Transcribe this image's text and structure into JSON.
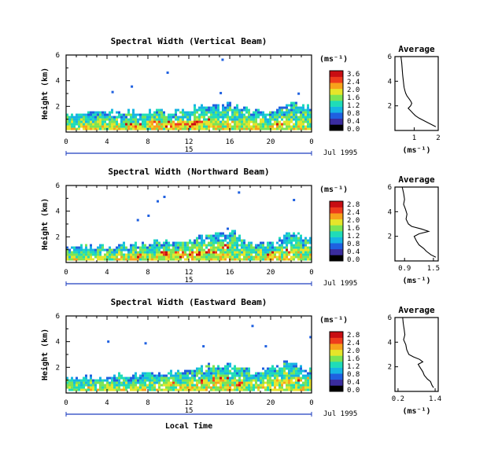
{
  "chart_data": [
    {
      "type": "heatmap",
      "title": "Spectral Width (Vertical Beam)",
      "ylabel": "Height (km)",
      "ylim": [
        0,
        6
      ],
      "y_ticks": [
        "6",
        "4",
        "2"
      ],
      "xlim": [
        0,
        24
      ],
      "x_ticks": [
        "0",
        "4",
        "8",
        "12",
        "16",
        "20",
        "0"
      ],
      "date_day": "15",
      "date_label": "Jul 1995",
      "colorbar": {
        "unit_label": "(ms⁻¹)",
        "ticks": [
          "3.6",
          "2.4",
          "2.0",
          "1.6",
          "1.2",
          "0.8",
          "0.4",
          "0.0"
        ],
        "colors": [
          "#000000",
          "#3a2c9e",
          "#1f60e0",
          "#16b4e4",
          "#1fdcb8",
          "#7ce454",
          "#e6e52a",
          "#f7a21b",
          "#ee3c1c",
          "#c80d12"
        ]
      },
      "echo_profile": [
        {
          "x": 0,
          "top": 1.3
        },
        {
          "x": 2,
          "top": 1.4
        },
        {
          "x": 4,
          "top": 1.4
        },
        {
          "x": 6,
          "top": 1.5
        },
        {
          "x": 8,
          "top": 1.5
        },
        {
          "x": 10,
          "top": 1.6
        },
        {
          "x": 12,
          "top": 1.7
        },
        {
          "x": 14,
          "top": 1.9
        },
        {
          "x": 16,
          "top": 2.1
        },
        {
          "x": 18,
          "top": 1.6
        },
        {
          "x": 20,
          "top": 1.5
        },
        {
          "x": 22,
          "top": 2.2
        },
        {
          "x": 24,
          "top": 1.8
        }
      ],
      "hot_spots": [
        {
          "x": 6.5,
          "y": 0.4,
          "level": "high"
        },
        {
          "x": 8.5,
          "y": 0.5,
          "level": "high"
        },
        {
          "x": 10,
          "y": 0.5,
          "level": "high"
        },
        {
          "x": 11.5,
          "y": 0.6,
          "level": "high"
        },
        {
          "x": 12.5,
          "y": 0.5,
          "level": "high"
        },
        {
          "x": 14,
          "y": 0.7,
          "level": "medium"
        },
        {
          "x": 16,
          "y": 0.6,
          "level": "medium"
        },
        {
          "x": 21,
          "y": 0.6,
          "level": "medium"
        }
      ],
      "profile": {
        "title": "Average",
        "xlabel": "(ms⁻¹)",
        "x_ticks": [
          "1",
          "2"
        ],
        "xlim": [
          0.2,
          2.0
        ],
        "y_ticks": [
          "6",
          "4",
          "2"
        ],
        "ylim": [
          0,
          6
        ],
        "x": [
          0.45,
          0.48,
          0.5,
          0.52,
          0.55,
          0.58,
          0.62,
          0.65,
          0.7,
          0.78,
          0.85,
          0.9,
          0.85,
          0.75,
          0.85,
          0.95,
          1.05,
          1.2,
          1.5,
          1.9
        ],
        "y": [
          6.0,
          5.5,
          5.0,
          4.5,
          4.0,
          3.5,
          3.2,
          3.0,
          2.8,
          2.6,
          2.4,
          2.2,
          2.0,
          1.8,
          1.6,
          1.4,
          1.2,
          1.0,
          0.7,
          0.3
        ]
      }
    },
    {
      "type": "heatmap",
      "title": "Spectral Width (Northward Beam)",
      "ylabel": "Height (km)",
      "ylim": [
        0,
        6
      ],
      "y_ticks": [
        "6",
        "4",
        "2"
      ],
      "xlim": [
        0,
        24
      ],
      "x_ticks": [
        "0",
        "4",
        "8",
        "12",
        "16",
        "20",
        "0"
      ],
      "date_day": "15",
      "date_label": "Jul 1995",
      "colorbar": {
        "unit_label": "(ms⁻¹)",
        "ticks": [
          "2.8",
          "2.4",
          "2.0",
          "1.6",
          "1.2",
          "0.8",
          "0.4",
          "0.0"
        ],
        "colors": [
          "#000000",
          "#3a2c9e",
          "#1f60e0",
          "#16b4e4",
          "#1fdcb8",
          "#7ce454",
          "#e6e52a",
          "#f7a21b",
          "#ee3c1c",
          "#c80d12"
        ]
      },
      "echo_profile": [
        {
          "x": 0,
          "top": 1.1
        },
        {
          "x": 2,
          "top": 1.2
        },
        {
          "x": 4,
          "top": 1.1
        },
        {
          "x": 6,
          "top": 1.3
        },
        {
          "x": 8,
          "top": 1.4
        },
        {
          "x": 10,
          "top": 1.5
        },
        {
          "x": 12,
          "top": 1.7
        },
        {
          "x": 14,
          "top": 2.2
        },
        {
          "x": 16,
          "top": 2.4
        },
        {
          "x": 18,
          "top": 1.3
        },
        {
          "x": 20,
          "top": 1.4
        },
        {
          "x": 22,
          "top": 2.2
        },
        {
          "x": 24,
          "top": 1.6
        }
      ],
      "hot_spots": [
        {
          "x": 7,
          "y": 0.4,
          "level": "medium"
        },
        {
          "x": 9.5,
          "y": 0.6,
          "level": "high"
        },
        {
          "x": 11,
          "y": 0.6,
          "level": "high"
        },
        {
          "x": 12.5,
          "y": 0.6,
          "level": "high"
        },
        {
          "x": 14,
          "y": 0.8,
          "level": "medium"
        },
        {
          "x": 15.5,
          "y": 1.2,
          "level": "medium"
        },
        {
          "x": 20,
          "y": 0.5,
          "level": "medium"
        },
        {
          "x": 22,
          "y": 0.8,
          "level": "medium"
        }
      ],
      "profile": {
        "title": "Average",
        "xlabel": "(ms⁻¹)",
        "x_ticks": [
          "0.9",
          "1.5"
        ],
        "xlim": [
          0.7,
          1.6
        ],
        "y_ticks": [
          "6",
          "4",
          "2"
        ],
        "ylim": [
          0,
          6
        ],
        "x": [
          0.85,
          0.88,
          0.9,
          0.88,
          0.92,
          0.95,
          0.93,
          0.98,
          1.05,
          1.25,
          1.4,
          1.2,
          1.1,
          1.15,
          1.2,
          1.3,
          1.35,
          1.45,
          1.55
        ],
        "y": [
          6.0,
          5.5,
          5.0,
          4.6,
          4.2,
          3.8,
          3.4,
          3.0,
          2.8,
          2.6,
          2.4,
          2.2,
          2.0,
          1.6,
          1.3,
          1.0,
          0.8,
          0.5,
          0.3
        ]
      }
    },
    {
      "type": "heatmap",
      "title": "Spectral Width (Eastward Beam)",
      "ylabel": "Height (km)",
      "ylim": [
        0,
        6
      ],
      "y_ticks": [
        "6",
        "4",
        "2"
      ],
      "xlim": [
        0,
        24
      ],
      "x_ticks": [
        "0",
        "4",
        "8",
        "12",
        "16",
        "20",
        "0"
      ],
      "date_day": "15",
      "date_label": "Jul 1995",
      "xlabel": "Local Time",
      "colorbar": {
        "unit_label": "(ms⁻¹)",
        "ticks": [
          "2.8",
          "2.4",
          "2.0",
          "1.6",
          "1.2",
          "0.8",
          "0.4",
          "0.0"
        ],
        "colors": [
          "#000000",
          "#3a2c9e",
          "#1f60e0",
          "#16b4e4",
          "#1fdcb8",
          "#7ce454",
          "#e6e52a",
          "#f7a21b",
          "#ee3c1c",
          "#c80d12"
        ]
      },
      "echo_profile": [
        {
          "x": 0,
          "top": 1.1
        },
        {
          "x": 2,
          "top": 1.2
        },
        {
          "x": 4,
          "top": 1.2
        },
        {
          "x": 6,
          "top": 1.3
        },
        {
          "x": 8,
          "top": 1.4
        },
        {
          "x": 10,
          "top": 1.6
        },
        {
          "x": 12,
          "top": 1.8
        },
        {
          "x": 14,
          "top": 2.0
        },
        {
          "x": 16,
          "top": 2.2
        },
        {
          "x": 18,
          "top": 1.6
        },
        {
          "x": 20,
          "top": 1.8
        },
        {
          "x": 22,
          "top": 2.4
        },
        {
          "x": 24,
          "top": 1.6
        }
      ],
      "hot_spots": [
        {
          "x": 10,
          "y": 0.6,
          "level": "medium"
        },
        {
          "x": 13,
          "y": 0.8,
          "level": "medium"
        },
        {
          "x": 15,
          "y": 0.9,
          "level": "high"
        },
        {
          "x": 17,
          "y": 0.6,
          "level": "medium"
        },
        {
          "x": 21,
          "y": 0.8,
          "level": "medium"
        },
        {
          "x": 23,
          "y": 1.0,
          "level": "medium"
        }
      ],
      "profile": {
        "title": "Average",
        "xlabel": "(ms⁻¹)",
        "x_ticks": [
          "0.2",
          "1.4"
        ],
        "xlim": [
          0.1,
          1.5
        ],
        "y_ticks": [
          "6",
          "4",
          "2"
        ],
        "ylim": [
          0,
          6
        ],
        "x": [
          0.35,
          0.37,
          0.4,
          0.42,
          0.38,
          0.45,
          0.48,
          0.55,
          0.7,
          0.9,
          1.0,
          0.85,
          0.9,
          1.0,
          1.05,
          1.15,
          1.25,
          1.3,
          1.35
        ],
        "y": [
          6.0,
          5.5,
          5.0,
          4.6,
          4.2,
          3.8,
          3.4,
          3.0,
          2.8,
          2.6,
          2.4,
          2.2,
          2.0,
          1.6,
          1.3,
          1.0,
          0.8,
          0.5,
          0.3
        ]
      }
    }
  ]
}
